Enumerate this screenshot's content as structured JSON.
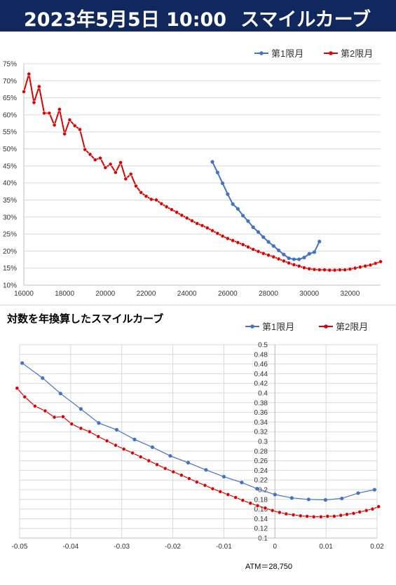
{
  "header": {
    "datetime": "2023年5月5日 10:00",
    "title": "スマイルカーブ"
  },
  "colors": {
    "header_bg": "#10285e",
    "series1": "#4472c4",
    "series2": "#e00000",
    "grid": "#d9d9d9"
  },
  "chart_data": [
    {
      "type": "line",
      "title": "",
      "xlabel": "",
      "ylabel": "",
      "xlim": [
        16000,
        33500
      ],
      "ylim": [
        0.1,
        0.75
      ],
      "grid": true,
      "legend": "top-right",
      "x_ticks": [
        "16000",
        "18000",
        "20000",
        "22000",
        "24000",
        "26000",
        "28000",
        "30000",
        "32000"
      ],
      "x_tick_values": [
        16000,
        18000,
        20000,
        22000,
        24000,
        26000,
        28000,
        30000,
        32000
      ],
      "y_ticks": [
        "10%",
        "15%",
        "20%",
        "25%",
        "30%",
        "35%",
        "40%",
        "45%",
        "50%",
        "55%",
        "60%",
        "65%",
        "70%",
        "75%"
      ],
      "y_tick_values": [
        0.1,
        0.15,
        0.2,
        0.25,
        0.3,
        0.35,
        0.4,
        0.45,
        0.5,
        0.55,
        0.6,
        0.65,
        0.7,
        0.75
      ],
      "series": [
        {
          "name": "第1限月",
          "x": [
            25250,
            25500,
            25750,
            26000,
            26250,
            26500,
            26750,
            27000,
            27250,
            27500,
            27750,
            28000,
            28250,
            28500,
            28750,
            29000,
            29250,
            29500,
            29750,
            30000,
            30250,
            30500
          ],
          "y": [
            0.462,
            0.431,
            0.399,
            0.367,
            0.338,
            0.324,
            0.304,
            0.288,
            0.27,
            0.256,
            0.241,
            0.227,
            0.215,
            0.202,
            0.19,
            0.179,
            0.176,
            0.176,
            0.181,
            0.192,
            0.197,
            0.228
          ]
        },
        {
          "name": "第2限月",
          "x": [
            16000,
            16250,
            16500,
            16750,
            17000,
            17250,
            17500,
            17750,
            18000,
            18250,
            18500,
            18750,
            19000,
            19250,
            19500,
            19750,
            20000,
            20250,
            20500,
            20750,
            21000,
            21250,
            21500,
            21750,
            22000,
            22250,
            22500,
            22750,
            23000,
            23250,
            23500,
            23750,
            24000,
            24250,
            24500,
            24750,
            25000,
            25250,
            25500,
            25750,
            26000,
            26250,
            26500,
            26750,
            27000,
            27250,
            27500,
            27750,
            28000,
            28250,
            28500,
            28750,
            29000,
            29250,
            29500,
            29750,
            30000,
            30250,
            30500,
            30750,
            31000,
            31250,
            31500,
            31750,
            32000,
            32250,
            32500,
            32750,
            33000,
            33250,
            33500
          ],
          "y": [
            0.668,
            0.72,
            0.636,
            0.683,
            0.605,
            0.605,
            0.57,
            0.616,
            0.544,
            0.585,
            0.568,
            0.557,
            0.498,
            0.484,
            0.468,
            0.473,
            0.445,
            0.455,
            0.431,
            0.46,
            0.412,
            0.426,
            0.391,
            0.372,
            0.361,
            0.352,
            0.35,
            0.339,
            0.33,
            0.322,
            0.314,
            0.305,
            0.297,
            0.289,
            0.281,
            0.275,
            0.268,
            0.26,
            0.252,
            0.244,
            0.237,
            0.231,
            0.225,
            0.219,
            0.212,
            0.205,
            0.199,
            0.193,
            0.188,
            0.183,
            0.177,
            0.171,
            0.165,
            0.16,
            0.156,
            0.151,
            0.148,
            0.146,
            0.145,
            0.145,
            0.144,
            0.144,
            0.145,
            0.145,
            0.147,
            0.15,
            0.153,
            0.156,
            0.159,
            0.164,
            0.169
          ]
        }
      ]
    },
    {
      "type": "line",
      "title": "対数を年換算したスマイルカーブ",
      "xlabel": "",
      "ylabel": "",
      "xlim": [
        -0.05,
        0.02
      ],
      "ylim": [
        0.1,
        0.5
      ],
      "grid": true,
      "legend": "top-right",
      "x_ticks": [
        "-0.05",
        "-0.04",
        "-0.03",
        "-0.02",
        "-0.01",
        "0",
        "0.01",
        "0.02"
      ],
      "x_tick_values": [
        -0.05,
        -0.04,
        -0.03,
        -0.02,
        -0.01,
        0,
        0.01,
        0.02
      ],
      "y_ticks": [
        "0.1",
        "0.12",
        "0.14",
        "0.16",
        "0.18",
        "0.2",
        "0.22",
        "0.24",
        "0.26",
        "0.28",
        "0.3",
        "0.32",
        "0.34",
        "0.36",
        "0.38",
        "0.4",
        "0.42",
        "0.44",
        "0.46",
        "0.48",
        "0.5"
      ],
      "y_tick_values": [
        0.1,
        0.12,
        0.14,
        0.16,
        0.18,
        0.2,
        0.22,
        0.24,
        0.26,
        0.28,
        0.3,
        0.32,
        0.34,
        0.36,
        0.38,
        0.4,
        0.42,
        0.44,
        0.46,
        0.48,
        0.5
      ],
      "annotation": "ATM＝28,750",
      "series": [
        {
          "name": "第1限月",
          "x": [
            -0.0495,
            -0.0455,
            -0.042,
            -0.038,
            -0.0345,
            -0.031,
            -0.0275,
            -0.024,
            -0.0205,
            -0.017,
            -0.0135,
            -0.01,
            -0.0065,
            -0.0035,
            0.0,
            0.0033,
            0.0066,
            0.0099,
            0.0131,
            0.0163,
            0.0195
          ],
          "y": [
            0.462,
            0.431,
            0.399,
            0.367,
            0.338,
            0.324,
            0.304,
            0.288,
            0.27,
            0.256,
            0.241,
            0.227,
            0.215,
            0.202,
            0.19,
            0.183,
            0.18,
            0.179,
            0.182,
            0.193,
            0.2
          ]
        },
        {
          "name": "第2限月",
          "x": [
            -0.0505,
            -0.049,
            -0.047,
            -0.045,
            -0.0432,
            -0.0415,
            -0.0398,
            -0.038,
            -0.0363,
            -0.0346,
            -0.0329,
            -0.0312,
            -0.0296,
            -0.0279,
            -0.0263,
            -0.0247,
            -0.0231,
            -0.0215,
            -0.0199,
            -0.0183,
            -0.0168,
            -0.0153,
            -0.0137,
            -0.0122,
            -0.0107,
            -0.0092,
            -0.0077,
            -0.0063,
            -0.0048,
            -0.0034,
            -0.0019,
            -0.0005,
            0.0009,
            0.0022,
            0.0036,
            0.005,
            0.0063,
            0.0076,
            0.009,
            0.0103,
            0.0116,
            0.0129,
            0.0141,
            0.0154,
            0.0166,
            0.0179,
            0.0191,
            0.0203
          ],
          "y": [
            0.41,
            0.392,
            0.373,
            0.363,
            0.35,
            0.351,
            0.336,
            0.327,
            0.32,
            0.31,
            0.301,
            0.292,
            0.284,
            0.276,
            0.268,
            0.26,
            0.252,
            0.244,
            0.237,
            0.23,
            0.223,
            0.216,
            0.209,
            0.202,
            0.196,
            0.19,
            0.184,
            0.178,
            0.172,
            0.167,
            0.162,
            0.157,
            0.153,
            0.15,
            0.148,
            0.146,
            0.145,
            0.144,
            0.144,
            0.145,
            0.145,
            0.147,
            0.149,
            0.151,
            0.154,
            0.157,
            0.16,
            0.165
          ]
        }
      ]
    }
  ]
}
